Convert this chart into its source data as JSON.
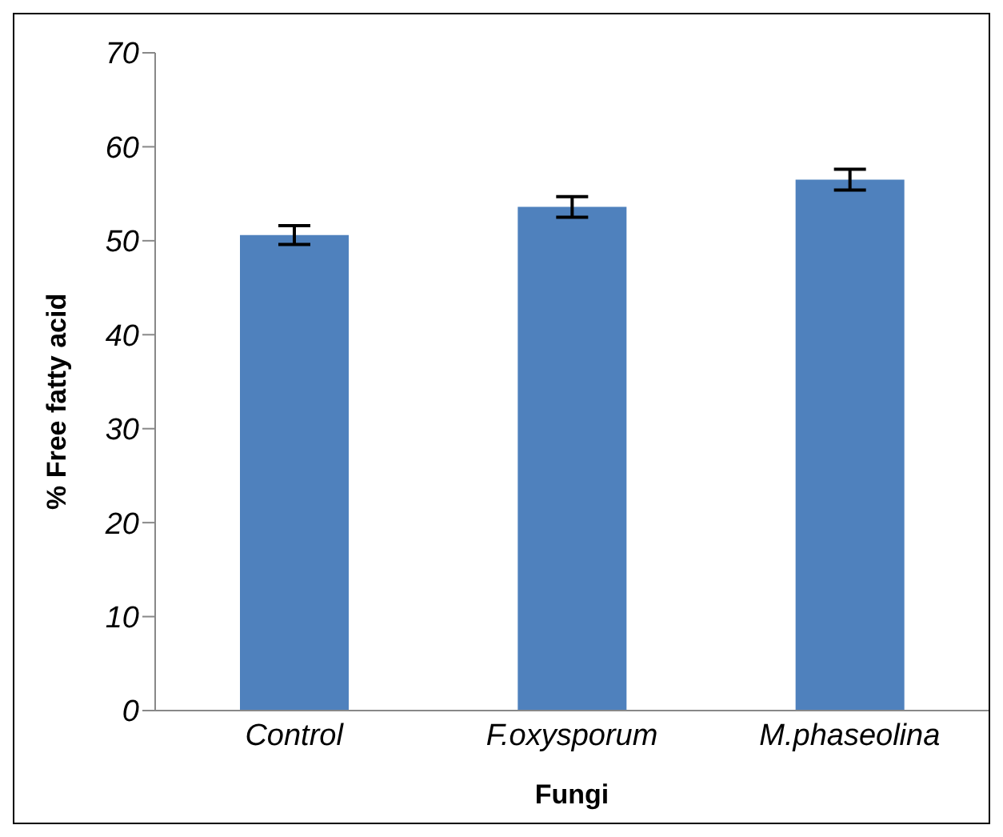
{
  "chart_data": {
    "type": "bar",
    "xlabel": "Fungi",
    "ylabel": "% Free fatty acid",
    "categories": [
      "Control",
      "F.oxysporum",
      "M.phaseolina"
    ],
    "values": [
      50.6,
      53.6,
      56.5
    ],
    "errors": [
      1.0,
      1.1,
      1.1
    ],
    "color": "#4f81bd",
    "ylim": [
      0,
      70
    ],
    "yticks": [
      0,
      10,
      20,
      30,
      40,
      50,
      60,
      70
    ],
    "grid": false,
    "legend": false
  }
}
